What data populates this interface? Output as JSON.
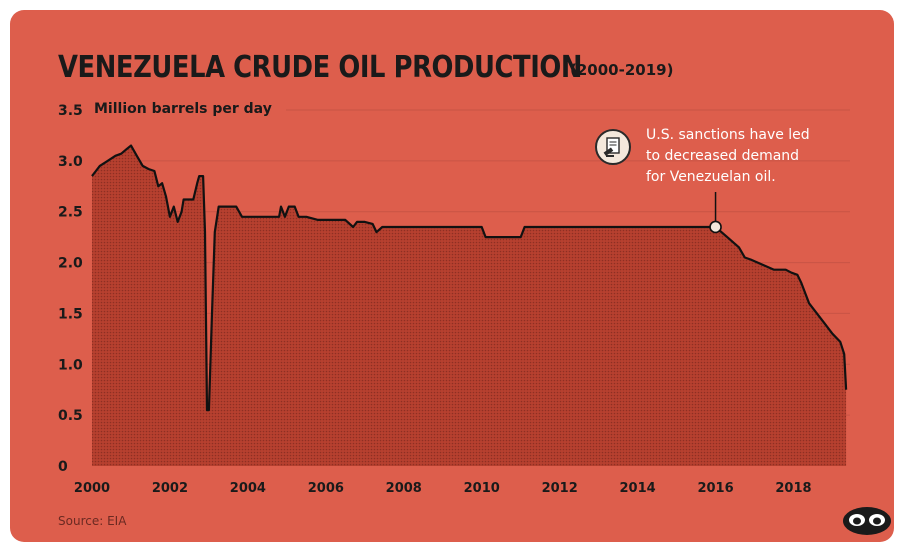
{
  "chart_data": {
    "type": "area",
    "title": "VENEZUELA CRUDE OIL PRODUCTION",
    "subtitle": "(2000-2019)",
    "ylabel": "Million barrels per day",
    "xlabel": "",
    "xlim": [
      2000,
      2019.45
    ],
    "ylim": [
      0,
      3.5
    ],
    "y_ticks": [
      {
        "value": 0,
        "label": "0"
      },
      {
        "value": 0.5,
        "label": "0.5"
      },
      {
        "value": 1.0,
        "label": "1.0"
      },
      {
        "value": 1.5,
        "label": "1.5"
      },
      {
        "value": 2.0,
        "label": "2.0"
      },
      {
        "value": 2.5,
        "label": "2.5"
      },
      {
        "value": 3.0,
        "label": "3.0"
      },
      {
        "value": 3.5,
        "label": "3.5"
      }
    ],
    "x_ticks": [
      {
        "value": 2000,
        "label": "2000"
      },
      {
        "value": 2002,
        "label": "2002"
      },
      {
        "value": 2004,
        "label": "2004"
      },
      {
        "value": 2006,
        "label": "2006"
      },
      {
        "value": 2008,
        "label": "2008"
      },
      {
        "value": 2010,
        "label": "2010"
      },
      {
        "value": 2012,
        "label": "2012"
      },
      {
        "value": 2014,
        "label": "2014"
      },
      {
        "value": 2016,
        "label": "2016"
      },
      {
        "value": 2018,
        "label": "2018"
      }
    ],
    "grid": true,
    "series": [
      {
        "x": [
          2000.0,
          2000.1,
          2000.2,
          2000.4,
          2000.6,
          2000.75,
          2000.9,
          2001.0,
          2001.15,
          2001.3,
          2001.45,
          2001.6,
          2001.7,
          2001.8,
          2001.9,
          2002.0,
          2002.1,
          2002.2,
          2002.3,
          2002.35,
          2002.5,
          2002.6,
          2002.7,
          2002.75,
          2002.85,
          2002.9,
          2002.95,
          2003.0,
          2003.08,
          2003.15,
          2003.25,
          2003.45,
          2003.7,
          2003.85,
          2004.0,
          2004.5,
          2004.8,
          2004.85,
          2004.95,
          2005.05,
          2005.2,
          2005.3,
          2005.5,
          2005.8,
          2006.0,
          2006.5,
          2006.7,
          2006.8,
          2007.0,
          2007.2,
          2007.3,
          2007.45,
          2007.5,
          2008.0,
          2009.0,
          2010.0,
          2010.1,
          2010.5,
          2010.8,
          2011.0,
          2011.1,
          2012.0,
          2013.0,
          2014.0,
          2015.0,
          2016.0,
          2016.3,
          2016.6,
          2016.75,
          2016.9,
          2017.2,
          2017.5,
          2017.8,
          2017.95,
          2018.1,
          2018.2,
          2018.4,
          2018.6,
          2018.8,
          2019.0,
          2019.2,
          2019.3,
          2019.35
        ],
        "y": [
          2.85,
          2.9,
          2.95,
          3.0,
          3.05,
          3.07,
          3.12,
          3.15,
          3.05,
          2.95,
          2.92,
          2.9,
          2.75,
          2.78,
          2.65,
          2.45,
          2.55,
          2.4,
          2.5,
          2.62,
          2.62,
          2.62,
          2.78,
          2.85,
          2.85,
          2.3,
          0.55,
          0.55,
          1.5,
          2.3,
          2.55,
          2.55,
          2.55,
          2.45,
          2.45,
          2.45,
          2.45,
          2.55,
          2.45,
          2.55,
          2.55,
          2.45,
          2.45,
          2.42,
          2.42,
          2.42,
          2.35,
          2.4,
          2.4,
          2.38,
          2.3,
          2.35,
          2.35,
          2.35,
          2.35,
          2.35,
          2.25,
          2.25,
          2.25,
          2.25,
          2.35,
          2.35,
          2.35,
          2.35,
          2.35,
          2.35,
          2.25,
          2.15,
          2.05,
          2.03,
          1.98,
          1.93,
          1.93,
          1.9,
          1.88,
          1.8,
          1.6,
          1.5,
          1.4,
          1.3,
          1.22,
          1.1,
          0.75
        ]
      }
    ],
    "annotation": {
      "x": 2016.0,
      "y": 2.35,
      "lines": [
        "U.S. sanctions have led",
        "to decreased demand",
        "for Venezuelan oil."
      ]
    }
  },
  "source": "Source: EIA",
  "colors": {
    "background": "#dd5e4c",
    "area_fill": "#b03f30",
    "line": "#111111",
    "grid": "#c85445",
    "annotation_text": "#ffffff"
  },
  "icons": {
    "annotation": "sanctions-document-icon",
    "logo": "visual-capitalist-logo-icon"
  }
}
